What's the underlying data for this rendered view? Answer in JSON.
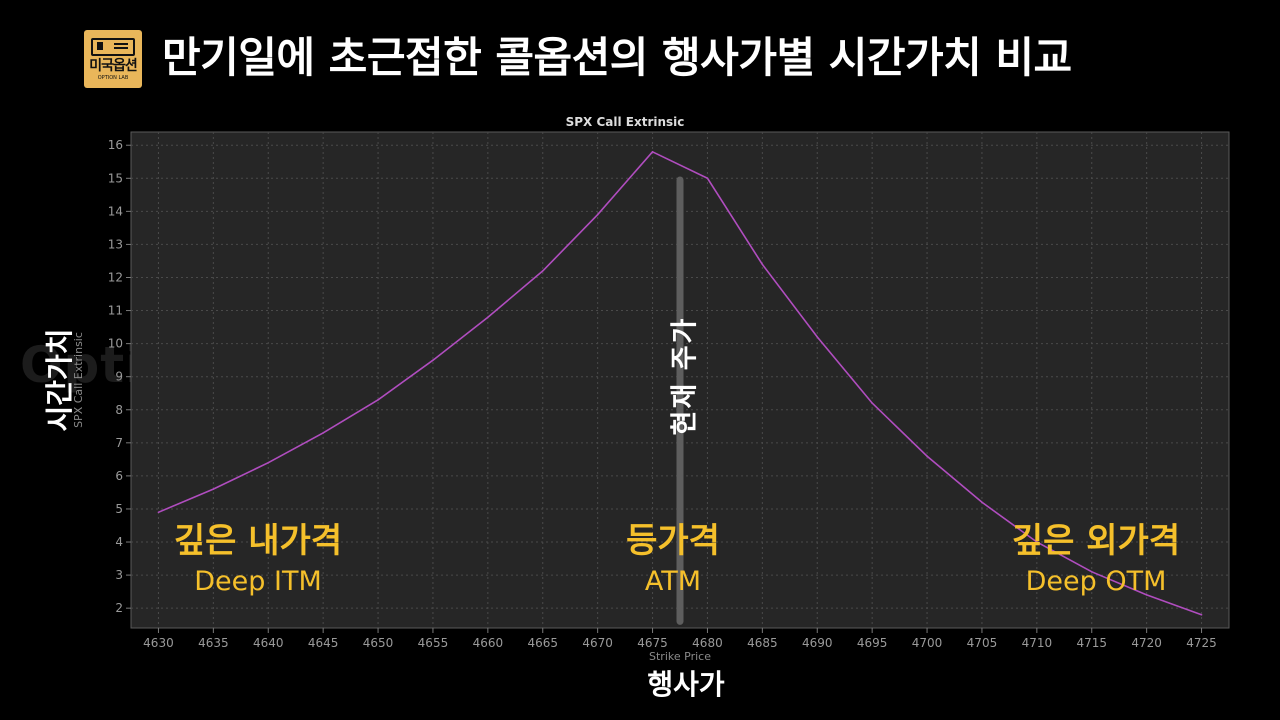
{
  "header": {
    "logo_text": "미국옵션",
    "logo_sub": "OPTION LAB",
    "title": "만기일에 초근접한 콜옵션의 행사가별 시간가치 비교"
  },
  "watermark": "Option",
  "overlay": {
    "y_label": "시간가치",
    "x_label": "행사가",
    "current_price_label": "현재 주가",
    "zones": [
      {
        "ko": "깊은 내가격",
        "en": "Deep ITM"
      },
      {
        "ko": "등가격",
        "en": "ATM"
      },
      {
        "ko": "깊은 외가격",
        "en": "Deep OTM"
      }
    ]
  },
  "chart_data": {
    "type": "line",
    "title": "SPX Call Extrinsic",
    "xlabel": "Strike Price",
    "ylabel": "SPX Call Extrinsic",
    "xlim": [
      4627.5,
      4727.5
    ],
    "ylim": [
      1.4,
      16.4
    ],
    "x_ticks": [
      4630,
      4635,
      4640,
      4645,
      4650,
      4655,
      4660,
      4665,
      4670,
      4675,
      4680,
      4685,
      4690,
      4695,
      4700,
      4705,
      4710,
      4715,
      4720,
      4725
    ],
    "y_ticks": [
      2,
      3,
      4,
      5,
      6,
      7,
      8,
      9,
      10,
      11,
      12,
      13,
      14,
      15,
      16
    ],
    "grid": true,
    "current_price": 4677.5,
    "series": [
      {
        "color": "#b04dbf",
        "x": [
          4630,
          4635,
          4640,
          4645,
          4650,
          4655,
          4660,
          4665,
          4670,
          4675,
          4680,
          4685,
          4690,
          4695,
          4700,
          4705,
          4710,
          4715,
          4720,
          4725
        ],
        "y": [
          4.9,
          5.6,
          6.4,
          7.3,
          8.3,
          9.5,
          10.8,
          12.2,
          13.9,
          15.8,
          15.0,
          12.4,
          10.2,
          8.2,
          6.6,
          5.2,
          4.0,
          3.1,
          2.4,
          1.8
        ]
      }
    ]
  }
}
